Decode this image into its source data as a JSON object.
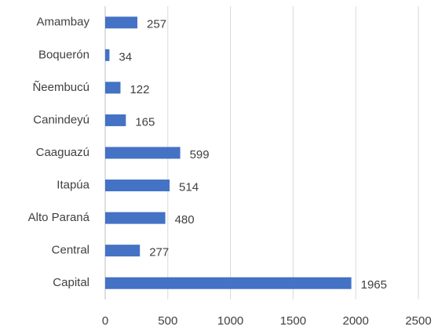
{
  "chart_data": {
    "type": "bar",
    "orientation": "horizontal",
    "categories": [
      "Amambay",
      "Boquerón",
      "Ñeembucú",
      "Canindeyú",
      "Caaguazú",
      "Itapúa",
      "Alto Paraná",
      "Central",
      "Capital"
    ],
    "values": [
      257,
      34,
      122,
      165,
      599,
      514,
      480,
      277,
      1965
    ],
    "color": "#4472c4",
    "xlim": [
      0,
      2500
    ],
    "xticks": [
      0,
      500,
      1000,
      1500,
      2000,
      2500
    ],
    "grid": true
  }
}
